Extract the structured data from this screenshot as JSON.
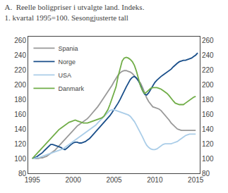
{
  "chart_data": {
    "type": "line",
    "title": "A.  Reelle boligpriser i utvalgte land. Indeks.",
    "subtitle": "1. kvartal 1995=100. Sesongjusterte tall",
    "xlim": [
      1994.5,
      2015.5
    ],
    "xticks": [
      1995,
      2000,
      2005,
      2010,
      2015
    ],
    "ylim": [
      80,
      265
    ],
    "yticks": [
      80,
      100,
      120,
      140,
      160,
      180,
      200,
      220,
      240,
      260
    ],
    "y2lim": [
      80,
      265
    ],
    "y2ticks": [
      80,
      100,
      120,
      140,
      160,
      180,
      200,
      220,
      240,
      260
    ],
    "grid": false,
    "legend": "upper left",
    "series": [
      {
        "name": "Spania",
        "color": "#999999",
        "x": [
          1995.0,
          1995.25,
          1995.5,
          1995.75,
          1996.0,
          1996.25,
          1996.5,
          1996.75,
          1997.0,
          1997.25,
          1997.5,
          1997.75,
          1998.0,
          1998.25,
          1998.5,
          1998.75,
          1999.0,
          1999.25,
          1999.5,
          1999.75,
          2000.0,
          2000.25,
          2000.5,
          2000.75,
          2001.0,
          2001.25,
          2001.5,
          2001.75,
          2002.0,
          2002.25,
          2002.5,
          2002.75,
          2003.0,
          2003.25,
          2003.5,
          2003.75,
          2004.0,
          2004.25,
          2004.5,
          2004.75,
          2005.0,
          2005.25,
          2005.5,
          2005.75,
          2006.0,
          2006.25,
          2006.5,
          2006.75,
          2007.0,
          2007.25,
          2007.5,
          2007.75,
          2008.0,
          2008.25,
          2008.5,
          2008.75,
          2009.0,
          2009.25,
          2009.5,
          2009.75,
          2010.0,
          2010.25,
          2010.5,
          2010.75,
          2011.0,
          2011.25,
          2011.5,
          2011.75,
          2012.0,
          2012.25,
          2012.5,
          2012.75,
          2013.0,
          2013.25,
          2013.5,
          2013.75,
          2014.0,
          2014.25,
          2014.5,
          2014.75,
          2015.0
        ],
        "values": [
          100,
          100,
          100,
          100,
          101,
          101,
          102,
          103,
          105,
          107,
          109,
          111,
          114,
          117,
          120,
          123,
          126,
          129,
          132,
          135,
          138,
          141,
          144,
          146,
          148,
          150,
          152,
          154,
          157,
          160,
          163,
          166,
          170,
          174,
          178,
          182,
          186,
          190,
          195,
          199,
          204,
          209,
          213,
          216,
          218,
          219,
          219,
          218,
          217,
          215,
          212,
          209,
          206,
          202,
          196,
          189,
          182,
          177,
          173,
          170,
          169,
          168,
          167,
          165,
          162,
          159,
          156,
          152,
          148,
          145,
          142,
          140,
          139,
          138,
          138,
          138,
          138,
          138,
          138,
          138,
          138
        ]
      },
      {
        "name": "Norge",
        "color": "#1a4f8a",
        "x": [
          1995.0,
          1995.25,
          1995.5,
          1995.75,
          1996.0,
          1996.25,
          1996.5,
          1996.75,
          1997.0,
          1997.25,
          1997.5,
          1997.75,
          1998.0,
          1998.25,
          1998.5,
          1998.75,
          1999.0,
          1999.25,
          1999.5,
          1999.75,
          2000.0,
          2000.25,
          2000.5,
          2000.75,
          2001.0,
          2001.25,
          2001.5,
          2001.75,
          2002.0,
          2002.25,
          2002.5,
          2002.75,
          2003.0,
          2003.25,
          2003.5,
          2003.75,
          2004.0,
          2004.25,
          2004.5,
          2004.75,
          2005.0,
          2005.25,
          2005.5,
          2005.75,
          2006.0,
          2006.25,
          2006.5,
          2006.75,
          2007.0,
          2007.25,
          2007.5,
          2007.75,
          2008.0,
          2008.25,
          2008.5,
          2008.75,
          2009.0,
          2009.25,
          2009.5,
          2009.75,
          2010.0,
          2010.25,
          2010.5,
          2010.75,
          2011.0,
          2011.25,
          2011.5,
          2011.75,
          2012.0,
          2012.25,
          2012.5,
          2012.75,
          2013.0,
          2013.25,
          2013.5,
          2013.75,
          2014.0,
          2014.25,
          2014.5,
          2014.75,
          2015.0,
          2015.25
        ],
        "values": [
          100,
          101,
          102,
          104,
          106,
          108,
          111,
          114,
          117,
          119,
          119,
          118,
          117,
          116,
          115,
          113,
          112,
          114,
          117,
          119,
          121,
          122,
          122,
          121,
          121,
          122,
          123,
          125,
          127,
          130,
          133,
          136,
          139,
          142,
          145,
          148,
          151,
          154,
          158,
          162,
          166,
          171,
          175,
          180,
          186,
          192,
          197,
          202,
          207,
          210,
          211,
          209,
          205,
          199,
          192,
          187,
          186,
          189,
          194,
          199,
          203,
          206,
          209,
          211,
          213,
          215,
          217,
          219,
          221,
          224,
          227,
          229,
          231,
          232,
          233,
          233,
          234,
          235,
          236,
          238,
          240,
          243
        ]
      },
      {
        "name": "USA",
        "color": "#aacde8",
        "x": [
          1995.0,
          1995.25,
          1995.5,
          1995.75,
          1996.0,
          1996.25,
          1996.5,
          1996.75,
          1997.0,
          1997.25,
          1997.5,
          1997.75,
          1998.0,
          1998.25,
          1998.5,
          1998.75,
          1999.0,
          1999.25,
          1999.5,
          1999.75,
          2000.0,
          2000.25,
          2000.5,
          2000.75,
          2001.0,
          2001.25,
          2001.5,
          2001.75,
          2002.0,
          2002.25,
          2002.5,
          2002.75,
          2003.0,
          2003.25,
          2003.5,
          2003.75,
          2004.0,
          2004.25,
          2004.5,
          2004.75,
          2005.0,
          2005.25,
          2005.5,
          2005.75,
          2006.0,
          2006.25,
          2006.5,
          2006.75,
          2007.0,
          2007.25,
          2007.5,
          2007.75,
          2008.0,
          2008.25,
          2008.5,
          2008.75,
          2009.0,
          2009.25,
          2009.5,
          2009.75,
          2010.0,
          2010.25,
          2010.5,
          2010.75,
          2011.0,
          2011.25,
          2011.5,
          2011.75,
          2012.0,
          2012.25,
          2012.5,
          2012.75,
          2013.0,
          2013.25,
          2013.5,
          2013.75,
          2014.0,
          2014.25,
          2014.5,
          2014.75,
          2015.0
        ],
        "values": [
          100,
          100,
          101,
          101,
          102,
          103,
          104,
          105,
          106,
          107,
          108,
          109,
          110,
          111,
          112,
          113,
          115,
          117,
          119,
          121,
          123,
          125,
          127,
          129,
          131,
          133,
          135,
          137,
          139,
          141,
          143,
          145,
          148,
          151,
          154,
          157,
          160,
          163,
          165,
          166,
          166,
          165,
          164,
          163,
          162,
          161,
          160,
          159,
          157,
          154,
          150,
          145,
          140,
          135,
          129,
          123,
          118,
          115,
          113,
          112,
          112,
          113,
          115,
          117,
          119,
          120,
          120,
          120,
          120,
          121,
          122,
          123,
          125,
          127,
          129,
          131,
          132,
          133,
          133,
          133,
          133
        ]
      },
      {
        "name": "Danmark",
        "color": "#70ad47",
        "x": [
          1995.0,
          1995.25,
          1995.5,
          1995.75,
          1996.0,
          1996.25,
          1996.5,
          1996.75,
          1997.0,
          1997.25,
          1997.5,
          1997.75,
          1998.0,
          1998.25,
          1998.5,
          1998.75,
          1999.0,
          1999.25,
          1999.5,
          1999.75,
          2000.0,
          2000.25,
          2000.5,
          2000.75,
          2001.0,
          2001.25,
          2001.5,
          2001.75,
          2002.0,
          2002.25,
          2002.5,
          2002.75,
          2003.0,
          2003.25,
          2003.5,
          2003.75,
          2004.0,
          2004.25,
          2004.5,
          2004.75,
          2005.0,
          2005.25,
          2005.5,
          2005.75,
          2006.0,
          2006.25,
          2006.5,
          2006.75,
          2007.0,
          2007.25,
          2007.5,
          2007.75,
          2008.0,
          2008.25,
          2008.5,
          2008.75,
          2009.0,
          2009.25,
          2009.5,
          2009.75,
          2010.0,
          2010.25,
          2010.5,
          2010.75,
          2011.0,
          2011.25,
          2011.5,
          2011.75,
          2012.0,
          2012.25,
          2012.5,
          2012.75,
          2013.0,
          2013.25,
          2013.5,
          2013.75,
          2014.0,
          2014.25,
          2014.5,
          2014.75,
          2015.0
        ],
        "values": [
          100,
          103,
          106,
          109,
          112,
          115,
          118,
          121,
          124,
          127,
          130,
          133,
          136,
          139,
          141,
          143,
          145,
          147,
          149,
          150,
          151,
          152,
          151,
          150,
          149,
          148,
          148,
          148,
          149,
          150,
          151,
          152,
          153,
          154,
          155,
          157,
          161,
          166,
          173,
          181,
          189,
          197,
          211,
          223,
          232,
          236,
          237,
          236,
          234,
          231,
          226,
          218,
          208,
          198,
          192,
          188,
          190,
          193,
          195,
          196,
          196,
          196,
          195,
          194,
          192,
          190,
          188,
          185,
          181,
          178,
          175,
          174,
          173,
          173,
          173,
          175,
          177,
          179,
          181,
          183,
          184
        ]
      }
    ]
  }
}
